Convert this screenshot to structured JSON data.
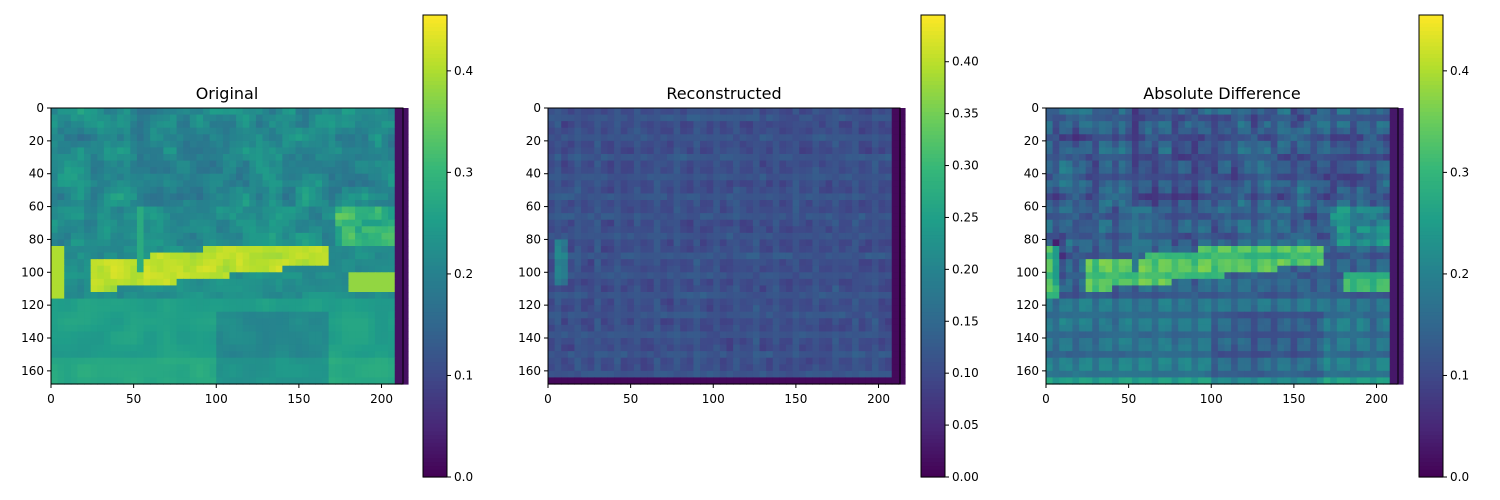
{
  "chart_data": [
    {
      "type": "heatmap",
      "title": "Original",
      "xlabel": "",
      "ylabel": "",
      "colormap": "viridis",
      "xlim": [
        0,
        213
      ],
      "ylim": [
        168,
        0
      ],
      "xticks": [
        0,
        50,
        100,
        150,
        200
      ],
      "yticks": [
        0,
        20,
        40,
        60,
        80,
        100,
        120,
        140,
        160
      ],
      "colorbar": {
        "min": 0.0,
        "max": 0.455,
        "ticks": [
          "0.0",
          "0.1",
          "0.2",
          "0.3",
          "0.4"
        ],
        "tick_values": [
          0.0,
          0.1,
          0.2,
          0.3,
          0.4
        ]
      },
      "content": "grayscale road scene: foliage background, bright roadside band near rows 85-115, lower road area"
    },
    {
      "type": "heatmap",
      "title": "Reconstructed",
      "xlabel": "",
      "ylabel": "",
      "colormap": "viridis",
      "xlim": [
        0,
        213
      ],
      "ylim": [
        168,
        0
      ],
      "xticks": [
        0,
        50,
        100,
        150,
        200
      ],
      "yticks": [
        0,
        20,
        40,
        60,
        80,
        100,
        120,
        140,
        160
      ],
      "colorbar": {
        "min": 0.0,
        "max": 0.445,
        "ticks": [
          "0.00",
          "0.05",
          "0.10",
          "0.15",
          "0.20",
          "0.25",
          "0.30",
          "0.35",
          "0.40"
        ],
        "tick_values": [
          0.0,
          0.05,
          0.1,
          0.15,
          0.2,
          0.25,
          0.3,
          0.35,
          0.4
        ]
      },
      "content": "mostly low values (~0.08-0.12) with grid-like texture, dark border"
    },
    {
      "type": "heatmap",
      "title": "Absolute Difference",
      "xlabel": "",
      "ylabel": "",
      "colormap": "viridis",
      "xlim": [
        0,
        213
      ],
      "ylim": [
        168,
        0
      ],
      "xticks": [
        0,
        50,
        100,
        150,
        200
      ],
      "yticks": [
        0,
        20,
        40,
        60,
        80,
        100,
        120,
        140,
        160
      ],
      "colorbar": {
        "min": 0.0,
        "max": 0.455,
        "ticks": [
          "0.0",
          "0.1",
          "0.2",
          "0.3",
          "0.4"
        ],
        "tick_values": [
          0.0,
          0.1,
          0.2,
          0.3,
          0.4
        ]
      },
      "content": "difference highlights roadside band (~0.35-0.45) and lower road area (~0.2-0.25), dark upper foliage"
    }
  ]
}
